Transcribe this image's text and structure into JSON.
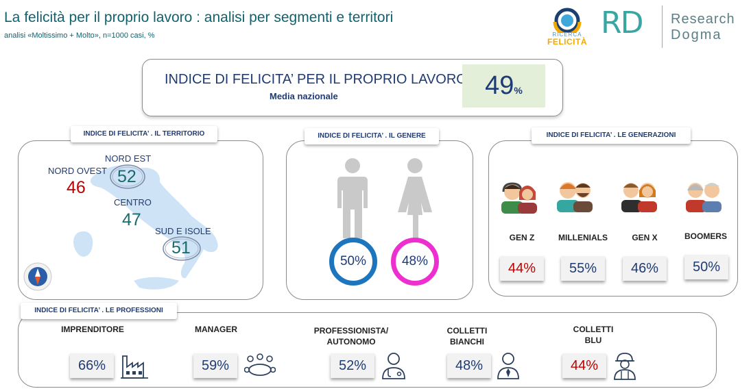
{
  "header": {
    "title": "La felicità per il proprio lavoro : analisi per segmenti e territori",
    "subtitle": "analisi «Moltissimo + Molto», n=1000 casi, %"
  },
  "logos": {
    "felicita_small": "RICERCA",
    "felicita_big": "FELICITÀ",
    "rd_mark": "RD",
    "rd_word1": "Research",
    "rd_word2": "Dogma"
  },
  "headline": {
    "title": "INDICE DI FELICITA’ PER IL PROPRIO LAVORO",
    "subtitle": "Media nazionale",
    "value": "49",
    "unit": "%"
  },
  "territory": {
    "tab": "INDICE DI FELICITA’ . IL TERRITORIO",
    "regions": [
      {
        "label": "NORD OVEST",
        "value": "46"
      },
      {
        "label": "NORD EST",
        "value": "52"
      },
      {
        "label": "CENTRO",
        "value": "47"
      },
      {
        "label": "SUD E ISOLE",
        "value": "51"
      }
    ]
  },
  "gender": {
    "tab": "INDICE DI FELICITA’ . IL GENERE",
    "male": "50%",
    "female": "48%"
  },
  "generations": {
    "tab": "INDICE DI FELICITA’ . LE GENERAZIONI",
    "items": [
      {
        "label": "GEN Z",
        "value": "44%"
      },
      {
        "label": "MILLENIALS",
        "value": "55%"
      },
      {
        "label": "GEN X",
        "value": "46%"
      },
      {
        "label": "BOOMERS",
        "value": "50%"
      }
    ]
  },
  "professions": {
    "tab": "INDICE DI FELICITA’ . LE PROFESSIONI",
    "items": [
      {
        "label": "IMPRENDITORE",
        "value": "66%",
        "icon": "factory-icon"
      },
      {
        "label": "MANAGER",
        "value": "59%",
        "icon": "meeting-icon"
      },
      {
        "label_line1": "PROFESSIONISTA/",
        "label_line2": "AUTONOMO",
        "value": "52%",
        "icon": "doctor-icon"
      },
      {
        "label_line1": "COLLETTI",
        "label_line2": "BIANCHI",
        "value": "48%",
        "icon": "office-worker-icon"
      },
      {
        "label_line1": "COLLETTI",
        "label_line2": "BLU",
        "value": "44%",
        "icon": "worker-helmet-icon"
      }
    ]
  },
  "colors": {
    "accent_teal": "#10626e",
    "navy": "#1f3b73",
    "negative_red": "#c00000",
    "positive_teal": "#1a6b6b",
    "male_ring": "#1d75bd",
    "female_ring": "#ee2fd0",
    "map_blue": "#cfe3f6"
  }
}
